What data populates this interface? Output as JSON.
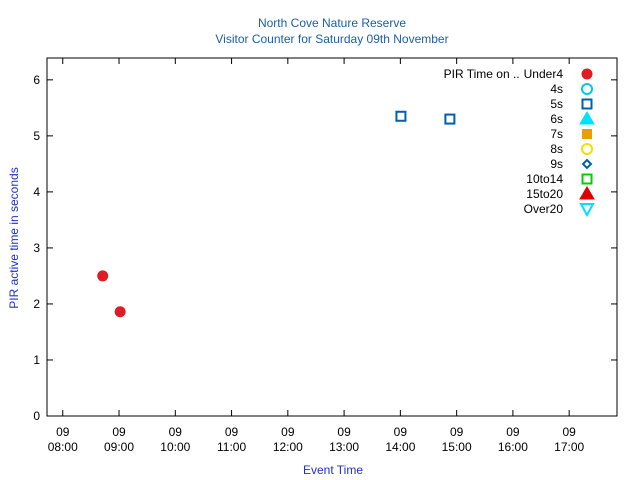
{
  "chart_data": {
    "type": "scatter",
    "title": "North Cove Nature Reserve",
    "subtitle": "Visitor Counter for Saturday 09th November",
    "x_label": "Event Time",
    "y_label": "PIR active time in seconds",
    "legend_title": "PIR Time on ..",
    "legend": "top-right",
    "xlim": [
      7.72,
      17.85
    ],
    "ylim": [
      0,
      6.39
    ],
    "xticks": [
      {
        "value": 8,
        "label": "09 08:00"
      },
      {
        "value": 9,
        "label": "09 09:00"
      },
      {
        "value": 10,
        "label": "09 10:00"
      },
      {
        "value": 11,
        "label": "09 11:00"
      },
      {
        "value": 12,
        "label": "09 12:00"
      },
      {
        "value": 13,
        "label": "09 13:00"
      },
      {
        "value": 14,
        "label": "09 14:00"
      },
      {
        "value": 15,
        "label": "09 15:00"
      },
      {
        "value": 16,
        "label": "09 16:00"
      },
      {
        "value": 17,
        "label": "09 17:00"
      }
    ],
    "yticks": [
      0,
      1,
      2,
      3,
      4,
      5,
      6
    ],
    "series": [
      {
        "name": "Under4",
        "color": "#dd1c26",
        "marker": "circle-filled",
        "x": [
          8.71,
          9.02
        ],
        "values": [
          2.5,
          1.86
        ]
      },
      {
        "name": "4s",
        "color": "#00c8e8",
        "marker": "circle-open",
        "x": [],
        "values": []
      },
      {
        "name": "5s",
        "color": "#0060ad",
        "marker": "square-open",
        "x": [
          14.01,
          14.88
        ],
        "values": [
          5.35,
          5.3
        ]
      },
      {
        "name": "6s",
        "color": "#00e0ff",
        "marker": "triangle-filled",
        "x": [],
        "values": []
      },
      {
        "name": "7s",
        "color": "#e69f00",
        "marker": "square-filled",
        "x": [],
        "values": []
      },
      {
        "name": "8s",
        "color": "#f0e000",
        "marker": "circle-open",
        "x": [],
        "values": []
      },
      {
        "name": "9s",
        "color": "#0060ad",
        "marker": "diamond-open",
        "x": [],
        "values": []
      },
      {
        "name": "10to14",
        "color": "#00d000",
        "marker": "square-open",
        "x": [],
        "values": []
      },
      {
        "name": "15to20",
        "color": "#e00000",
        "marker": "triangle-filled",
        "x": [],
        "values": []
      },
      {
        "name": "Over20",
        "color": "#00e0ff",
        "marker": "triangle-down-open",
        "x": [],
        "values": []
      }
    ]
  }
}
